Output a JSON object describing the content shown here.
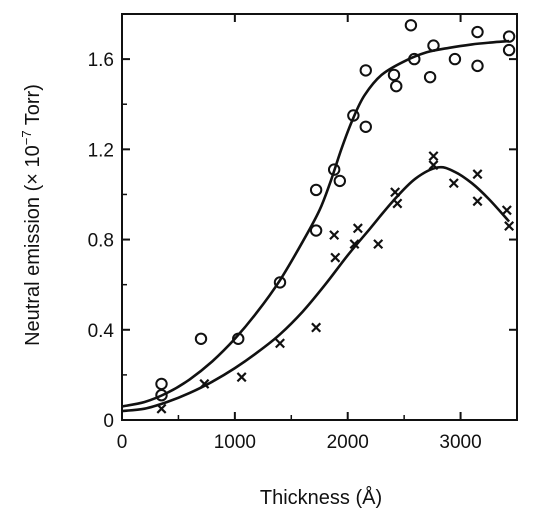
{
  "chart_data": {
    "type": "scatter",
    "title": "",
    "xlabel": "Thickness (Å)",
    "ylabel": {
      "prefix": "Neutral emission (× 10",
      "exponent": "−7",
      "suffix": " Torr)"
    },
    "xlim": [
      0,
      3500
    ],
    "ylim": [
      0,
      1.8
    ],
    "x_ticks": [
      0,
      1000,
      2000,
      3000
    ],
    "y_ticks": [
      0,
      0.4,
      0.8,
      1.2,
      1.6
    ],
    "x_tick_labels": [
      "0",
      "1000",
      "2000",
      "3000"
    ],
    "y_tick_labels": [
      "0",
      "0.4",
      "0.8",
      "1.2",
      "1.6"
    ],
    "grid": false,
    "legend": "none",
    "series": [
      {
        "marker": "circle",
        "x": [
          350,
          350,
          700,
          1030,
          1400,
          1720,
          1720,
          1880,
          1930,
          2050,
          2160,
          2160,
          2410,
          2430,
          2560,
          2590,
          2730,
          2760,
          2950,
          3150,
          3150,
          3430,
          3430
        ],
        "y": [
          0.16,
          0.11,
          0.36,
          0.36,
          0.61,
          1.02,
          0.84,
          1.11,
          1.06,
          1.35,
          1.3,
          1.55,
          1.53,
          1.48,
          1.75,
          1.6,
          1.52,
          1.66,
          1.6,
          1.72,
          1.57,
          1.7,
          1.64
        ],
        "fit_x": [
          0,
          200,
          400,
          600,
          800,
          1000,
          1200,
          1400,
          1600,
          1750,
          1850,
          1950,
          2050,
          2150,
          2300,
          2500,
          2700,
          2900,
          3100,
          3300,
          3430
        ],
        "fit_y": [
          0.06,
          0.08,
          0.12,
          0.18,
          0.26,
          0.36,
          0.48,
          0.62,
          0.79,
          0.93,
          1.06,
          1.21,
          1.34,
          1.44,
          1.53,
          1.59,
          1.63,
          1.65,
          1.665,
          1.675,
          1.68
        ]
      },
      {
        "marker": "x",
        "x": [
          350,
          730,
          1060,
          1400,
          1720,
          1880,
          1890,
          2060,
          2090,
          2270,
          2420,
          2440,
          2760,
          2760,
          2940,
          3150,
          3150,
          3410,
          3430
        ],
        "y": [
          0.05,
          0.16,
          0.19,
          0.34,
          0.41,
          0.82,
          0.72,
          0.78,
          0.85,
          0.78,
          1.01,
          0.96,
          1.17,
          1.13,
          1.05,
          1.09,
          0.97,
          0.93,
          0.86
        ],
        "fit_x": [
          0,
          200,
          400,
          600,
          800,
          1000,
          1200,
          1400,
          1600,
          1800,
          2000,
          2200,
          2400,
          2600,
          2800,
          2950,
          3100,
          3250,
          3430
        ],
        "fit_y": [
          0.04,
          0.05,
          0.08,
          0.12,
          0.17,
          0.23,
          0.3,
          0.38,
          0.48,
          0.6,
          0.73,
          0.85,
          0.97,
          1.07,
          1.12,
          1.1,
          1.05,
          0.98,
          0.88
        ]
      }
    ]
  }
}
